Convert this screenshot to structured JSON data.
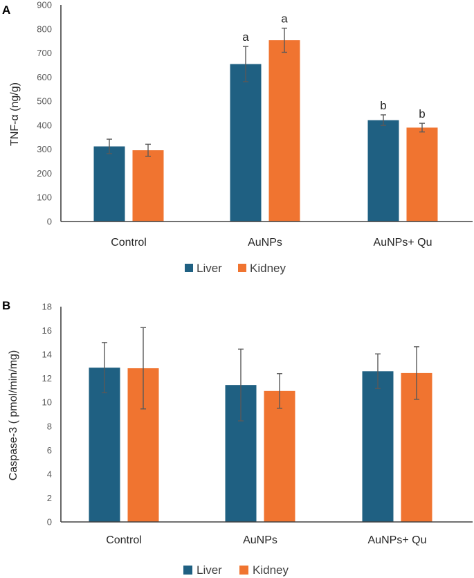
{
  "chart_data": [
    {
      "type": "bar",
      "panel_label": "A",
      "ylabel": "TNF-α (ng/g)",
      "categories": [
        "Control",
        "AuNPs",
        "AuNPs+ Qu"
      ],
      "ylim": [
        0,
        900
      ],
      "yticks": [
        0,
        100,
        200,
        300,
        400,
        500,
        600,
        700,
        800,
        900
      ],
      "legend_position": "bottom-center",
      "series": [
        {
          "name": "Liver",
          "color": "#1F6082",
          "values": [
            312,
            654,
            421
          ],
          "errors": [
            30,
            73,
            22
          ],
          "labels": [
            "",
            "a",
            "b"
          ]
        },
        {
          "name": "Kidney",
          "color": "#F07430",
          "values": [
            296,
            753,
            390
          ],
          "errors": [
            25,
            50,
            18
          ],
          "labels": [
            "",
            "a",
            "b"
          ]
        }
      ]
    },
    {
      "type": "bar",
      "panel_label": "B",
      "ylabel": "Caspase-3 ( pmol/min/mg)",
      "categories": [
        "Control",
        "AuNPs",
        "AuNPs+ Qu"
      ],
      "ylim": [
        0,
        18
      ],
      "yticks": [
        0,
        2,
        4,
        6,
        8,
        10,
        12,
        14,
        16,
        18
      ],
      "legend_position": "bottom-center",
      "series": [
        {
          "name": "Liver",
          "color": "#1F6082",
          "values": [
            12.9,
            11.45,
            12.6
          ],
          "errors": [
            2.1,
            3.0,
            1.45
          ],
          "labels": [
            "",
            "",
            ""
          ]
        },
        {
          "name": "Kidney",
          "color": "#F07430",
          "values": [
            12.85,
            10.95,
            12.45
          ],
          "errors": [
            3.4,
            1.45,
            2.2
          ],
          "labels": [
            "",
            "",
            ""
          ]
        }
      ]
    }
  ]
}
